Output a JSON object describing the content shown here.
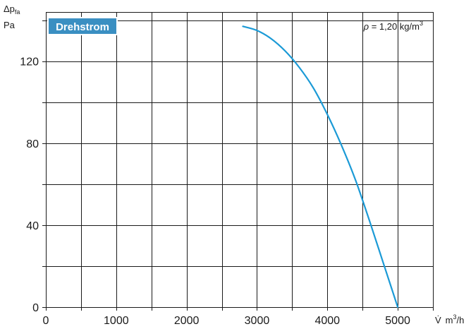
{
  "chart_data": {
    "type": "line",
    "badge": "Drehstrom",
    "density_label": {
      "symbol": "ρ",
      "text": " = 1,20 kg/m",
      "sup": "3"
    },
    "ylabel": {
      "main": "Δp",
      "sub": "fa",
      "unit": "Pa"
    },
    "xlabel": {
      "symbol": "V̇",
      "unit": "m",
      "sup": "3",
      "tail": "/h"
    },
    "xlim": [
      0,
      5500
    ],
    "ylim": [
      0,
      144
    ],
    "x_grid_step": 500,
    "y_grid_step": 20,
    "x_ticks": [
      0,
      1000,
      2000,
      3000,
      4000,
      5000
    ],
    "y_ticks": [
      0,
      40,
      80,
      120
    ],
    "grid": true,
    "series": [
      {
        "color": "#1b9ad6",
        "x": [
          2800,
          3000,
          3200,
          3400,
          3600,
          3800,
          4000,
          4200,
          4400,
          4600,
          4800,
          5000
        ],
        "y": [
          137,
          135,
          131,
          125,
          117,
          107,
          94,
          79,
          62,
          42,
          21,
          0
        ]
      }
    ]
  }
}
